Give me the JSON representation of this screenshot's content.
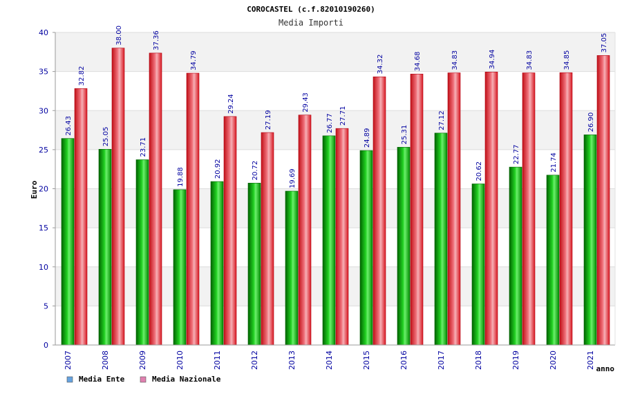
{
  "chart_data": {
    "type": "bar",
    "title": "COROCASTEL (c.f.82010190260)",
    "subtitle": "Media Importi",
    "xlabel": "anno",
    "ylabel": "Euro",
    "ylim": [
      0,
      40
    ],
    "yticks": [
      0,
      5,
      10,
      15,
      20,
      25,
      30,
      35,
      40
    ],
    "grid": true,
    "legend_position": "bottom-left",
    "categories": [
      "2007",
      "2008",
      "2009",
      "2010",
      "2011",
      "2012",
      "2013",
      "2014",
      "2015",
      "2016",
      "2017",
      "2018",
      "2019",
      "2020",
      "2021"
    ],
    "series": [
      {
        "name": "Media Ente",
        "color": "#00b000",
        "legend_color": "#66a3e0",
        "values": [
          26.43,
          25.05,
          23.71,
          19.88,
          20.92,
          20.72,
          19.69,
          26.77,
          24.89,
          25.31,
          27.12,
          20.62,
          22.77,
          21.74,
          26.9
        ],
        "labels": [
          "26.43",
          "25.05",
          "23.71",
          "19.88",
          "20.92",
          "20.72",
          "19.69",
          "26.77",
          "24.89",
          "25.31",
          "27.12",
          "20.62",
          "22.77",
          "21.74",
          "26.90"
        ]
      },
      {
        "name": "Media Nazionale",
        "color": "#e8202a",
        "legend_color": "#e080b0",
        "values": [
          32.82,
          38.0,
          37.36,
          34.79,
          29.24,
          27.19,
          29.43,
          27.71,
          34.32,
          34.68,
          34.83,
          34.94,
          34.83,
          34.85,
          37.05
        ],
        "labels": [
          "32.82",
          "38.00",
          "37.36",
          "34.79",
          "29.24",
          "27.19",
          "29.43",
          "27.71",
          "34.32",
          "34.68",
          "34.83",
          "34.94",
          "34.83",
          "34.85",
          "37.05"
        ]
      }
    ]
  }
}
